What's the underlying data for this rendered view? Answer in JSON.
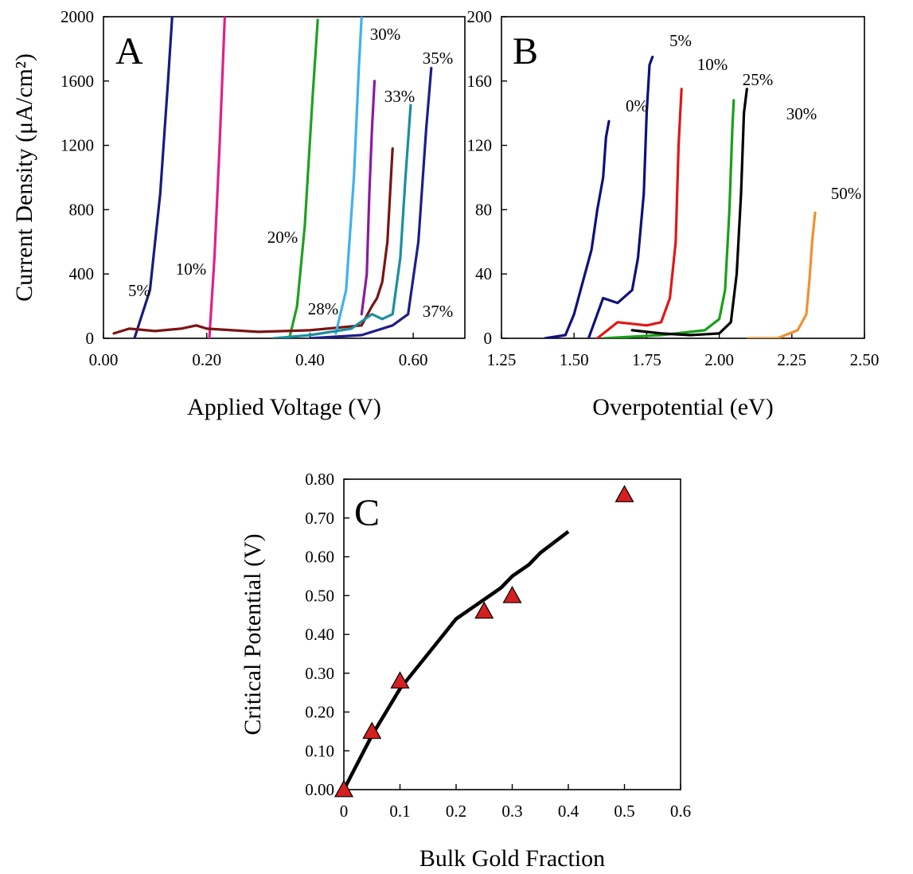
{
  "chart_data": [
    {
      "panel": "A",
      "type": "line",
      "xlabel": "Applied Voltage (V)",
      "ylabel": "Current Density (μA/cm²)",
      "xlim": [
        0,
        0.7
      ],
      "ylim": [
        0,
        2000
      ],
      "x_ticks": [
        "0.00",
        "0.20",
        "0.40",
        "0.60"
      ],
      "y_ticks": [
        "0",
        "400",
        "800",
        "1200",
        "1600",
        "2000"
      ],
      "grid": false,
      "series": [
        {
          "name": "5%",
          "color": "#1a1a80",
          "x": [
            0.06,
            0.09,
            0.11,
            0.125,
            0.133
          ],
          "y": [
            0,
            300,
            900,
            1600,
            2000
          ]
        },
        {
          "name": "10%",
          "color": "#e0208a",
          "x": [
            0.205,
            0.215,
            0.225,
            0.235
          ],
          "y": [
            0,
            500,
            1200,
            2000
          ]
        },
        {
          "name": "20%",
          "color": "#20a020",
          "x": [
            0.36,
            0.375,
            0.39,
            0.405,
            0.415
          ],
          "y": [
            0,
            200,
            700,
            1500,
            1980
          ]
        },
        {
          "name": "28%",
          "color": "#7a1414",
          "x": [
            0.02,
            0.05,
            0.1,
            0.15,
            0.18,
            0.2,
            0.3,
            0.4,
            0.5,
            0.52,
            0.53,
            0.54,
            0.55,
            0.56
          ],
          "y": [
            30,
            60,
            45,
            60,
            80,
            60,
            40,
            50,
            80,
            200,
            250,
            350,
            600,
            1180
          ]
        },
        {
          "name": "30%",
          "color": "#40b0f0",
          "x": [
            0.45,
            0.47,
            0.485,
            0.495,
            0.5
          ],
          "y": [
            30,
            300,
            1000,
            1700,
            2000
          ]
        },
        {
          "name": "33%",
          "color": "#1a8f9f",
          "x": [
            0.33,
            0.4,
            0.48,
            0.52,
            0.54,
            0.56,
            0.575,
            0.585,
            0.595
          ],
          "y": [
            0,
            20,
            60,
            150,
            120,
            150,
            500,
            1000,
            1450
          ]
        },
        {
          "name": "33%",
          "color": "#8a1aa0",
          "x": [
            0.5,
            0.51,
            0.515,
            0.52,
            0.525
          ],
          "y": [
            150,
            400,
            900,
            1300,
            1600
          ]
        },
        {
          "name": "35%",
          "color": "#1e1e88",
          "x": [
            0.4,
            0.5,
            0.56,
            0.59,
            0.61,
            0.625,
            0.635
          ],
          "y": [
            0,
            20,
            80,
            150,
            600,
            1300,
            1680
          ]
        }
      ],
      "annotations": [
        "5%",
        "10%",
        "20%",
        "28%",
        "30%",
        "33%",
        "35%",
        "37%"
      ]
    },
    {
      "panel": "B",
      "type": "line",
      "xlabel": "Overpotential (eV)",
      "ylabel": "",
      "xlim": [
        1.25,
        2.5
      ],
      "ylim": [
        0,
        200
      ],
      "x_ticks": [
        "1.25",
        "1.50",
        "1.75",
        "2.00",
        "2.25",
        "2.50"
      ],
      "y_ticks": [
        "0",
        "40",
        "80",
        "120",
        "160",
        "200"
      ],
      "grid": false,
      "series": [
        {
          "name": "0%",
          "color": "#10107a",
          "x": [
            1.4,
            1.47,
            1.5,
            1.53,
            1.56,
            1.58,
            1.6,
            1.61,
            1.62
          ],
          "y": [
            0,
            2,
            15,
            35,
            55,
            80,
            100,
            125,
            135
          ]
        },
        {
          "name": "5%",
          "color": "#10107a",
          "x": [
            1.55,
            1.6,
            1.65,
            1.7,
            1.72,
            1.74,
            1.75,
            1.76,
            1.77
          ],
          "y": [
            0,
            25,
            22,
            30,
            50,
            90,
            140,
            170,
            175
          ]
        },
        {
          "name": "10%",
          "color": "#e01818",
          "x": [
            1.58,
            1.65,
            1.75,
            1.8,
            1.83,
            1.85,
            1.86,
            1.87
          ],
          "y": [
            0,
            10,
            8,
            10,
            25,
            60,
            120,
            155
          ]
        },
        {
          "name": "25%",
          "color": "#18a018",
          "x": [
            1.6,
            1.8,
            1.95,
            2.0,
            2.02,
            2.035,
            2.045,
            2.05
          ],
          "y": [
            0,
            2,
            5,
            12,
            30,
            80,
            130,
            148
          ]
        },
        {
          "name": "30%",
          "color": "#000000",
          "x": [
            1.7,
            1.8,
            1.9,
            2.0,
            2.04,
            2.06,
            2.075,
            2.085,
            2.095
          ],
          "y": [
            5,
            3,
            2,
            3,
            10,
            40,
            90,
            140,
            155
          ]
        },
        {
          "name": "50%",
          "color": "#f09030",
          "x": [
            2.1,
            2.2,
            2.27,
            2.3,
            2.31,
            2.32,
            2.33
          ],
          "y": [
            0,
            0,
            5,
            15,
            35,
            60,
            78
          ]
        }
      ],
      "annotations": [
        "0%",
        "5%",
        "10%",
        "25%",
        "30%",
        "50%"
      ]
    },
    {
      "panel": "C",
      "type": "scatter",
      "xlabel": "Bulk Gold Fraction",
      "ylabel": "Critical Potential (V)",
      "xlim": [
        0,
        0.6
      ],
      "ylim": [
        0,
        0.8
      ],
      "x_ticks": [
        "0",
        "0.1",
        "0.2",
        "0.3",
        "0.4",
        "0.5",
        "0.6"
      ],
      "y_ticks": [
        "0.00",
        "0.10",
        "0.20",
        "0.30",
        "0.40",
        "0.50",
        "0.60",
        "0.70",
        "0.80"
      ],
      "grid": false,
      "points": {
        "marker": "triangle",
        "color": "#d42020",
        "x": [
          0,
          0.05,
          0.1,
          0.25,
          0.3,
          0.5
        ],
        "y": [
          0.0,
          0.15,
          0.28,
          0.46,
          0.5,
          0.76
        ]
      },
      "line": {
        "color": "#000000",
        "x": [
          0,
          0.05,
          0.1,
          0.15,
          0.2,
          0.25,
          0.28,
          0.3,
          0.33,
          0.35,
          0.4
        ],
        "y": [
          0.0,
          0.14,
          0.26,
          0.35,
          0.44,
          0.49,
          0.52,
          0.55,
          0.58,
          0.61,
          0.665
        ]
      }
    }
  ]
}
